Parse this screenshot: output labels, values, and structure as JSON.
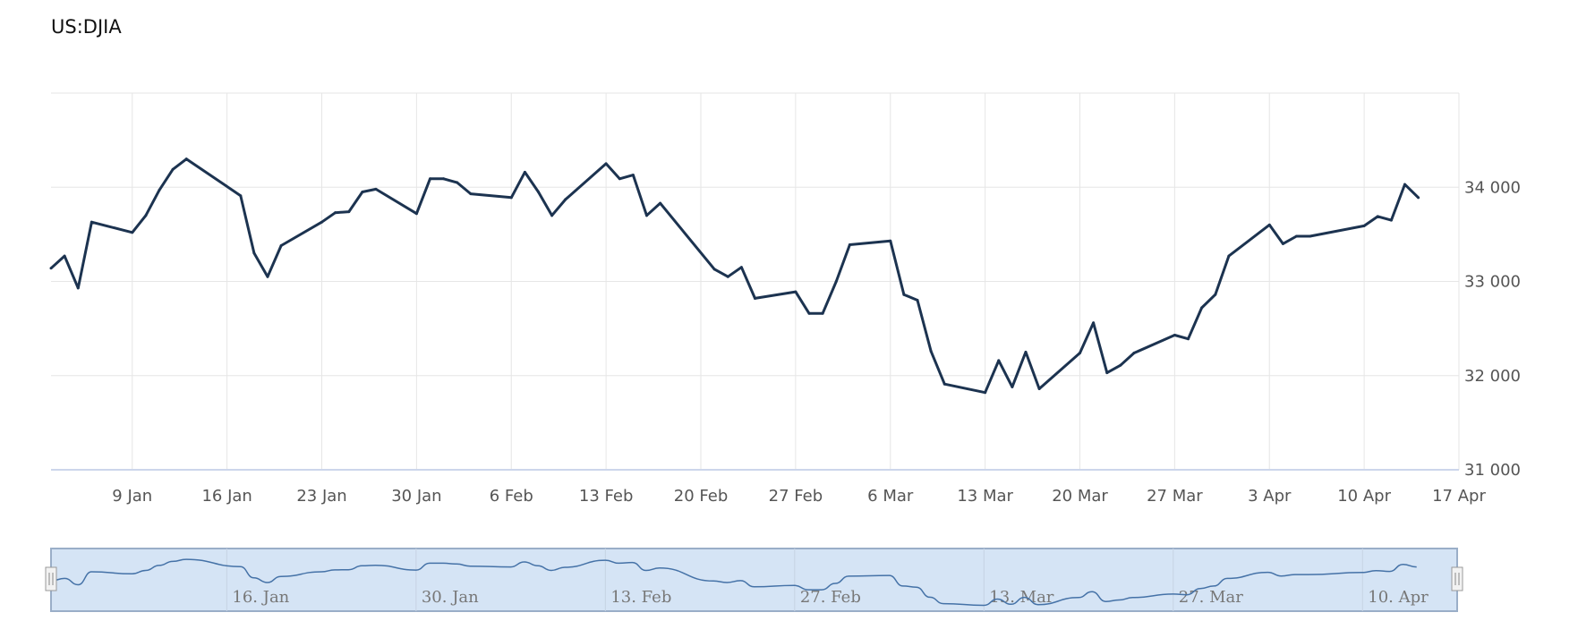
{
  "title": "US:DJIA",
  "colors": {
    "line": "#1c3350",
    "grid": "#e6e6e6",
    "axis": "#ccd6eb",
    "navigator_fill": "#d5e4f5",
    "navigator_line": "#4572a7"
  },
  "chart_data": {
    "type": "line",
    "title": "US:DJIA",
    "xlabel": "",
    "ylabel": "",
    "ylim": [
      31000,
      35000
    ],
    "y_ticks": [
      31000,
      32000,
      33000,
      34000
    ],
    "y_tick_labels": [
      "31 000",
      "32 000",
      "33 000",
      "34 000"
    ],
    "x_ticks": [
      "2023-01-09",
      "2023-01-16",
      "2023-01-23",
      "2023-01-30",
      "2023-02-06",
      "2023-02-13",
      "2023-02-20",
      "2023-02-27",
      "2023-03-06",
      "2023-03-13",
      "2023-03-20",
      "2023-03-27",
      "2023-04-03",
      "2023-04-10",
      "2023-04-17"
    ],
    "x_tick_labels": [
      "9 Jan",
      "16 Jan",
      "23 Jan",
      "30 Jan",
      "6 Feb",
      "13 Feb",
      "20 Feb",
      "27 Feb",
      "6 Mar",
      "13 Mar",
      "20 Mar",
      "27 Mar",
      "3 Apr",
      "10 Apr",
      "17 Apr"
    ],
    "xlim": [
      "2023-01-03",
      "2023-04-17"
    ],
    "grid": true,
    "legend": "none",
    "series": [
      {
        "x": [
          "2023-01-03",
          "2023-01-04",
          "2023-01-05",
          "2023-01-06",
          "2023-01-09",
          "2023-01-10",
          "2023-01-11",
          "2023-01-12",
          "2023-01-13",
          "2023-01-17",
          "2023-01-18",
          "2023-01-19",
          "2023-01-20",
          "2023-01-23",
          "2023-01-24",
          "2023-01-25",
          "2023-01-26",
          "2023-01-27",
          "2023-01-30",
          "2023-01-31",
          "2023-02-01",
          "2023-02-02",
          "2023-02-03",
          "2023-02-06",
          "2023-02-07",
          "2023-02-08",
          "2023-02-09",
          "2023-02-10",
          "2023-02-13",
          "2023-02-14",
          "2023-02-15",
          "2023-02-16",
          "2023-02-17",
          "2023-02-21",
          "2023-02-22",
          "2023-02-23",
          "2023-02-24",
          "2023-02-27",
          "2023-02-28",
          "2023-03-01",
          "2023-03-02",
          "2023-03-03",
          "2023-03-06",
          "2023-03-07",
          "2023-03-08",
          "2023-03-09",
          "2023-03-10",
          "2023-03-13",
          "2023-03-14",
          "2023-03-15",
          "2023-03-16",
          "2023-03-17",
          "2023-03-20",
          "2023-03-21",
          "2023-03-22",
          "2023-03-23",
          "2023-03-24",
          "2023-03-27",
          "2023-03-28",
          "2023-03-29",
          "2023-03-30",
          "2023-03-31",
          "2023-04-03",
          "2023-04-04",
          "2023-04-05",
          "2023-04-06",
          "2023-04-10",
          "2023-04-11",
          "2023-04-12",
          "2023-04-13",
          "2023-04-14"
        ],
        "values": [
          33140,
          33270,
          32930,
          33630,
          33520,
          33700,
          33970,
          34190,
          34300,
          33910,
          33300,
          33050,
          33380,
          33630,
          33730,
          33740,
          33950,
          33980,
          33720,
          34090,
          34090,
          34050,
          33930,
          33890,
          34160,
          33950,
          33700,
          33870,
          34250,
          34090,
          34130,
          33700,
          33830,
          33130,
          33050,
          33150,
          32820,
          32890,
          32660,
          32660,
          33000,
          33390,
          33430,
          32860,
          32800,
          32260,
          31910,
          31820,
          32160,
          31880,
          32250,
          31860,
          32240,
          32560,
          32030,
          32110,
          32240,
          32430,
          32390,
          32720,
          32860,
          33270,
          33600,
          33400,
          33480,
          33480,
          33590,
          33690,
          33650,
          34030,
          33890
        ]
      }
    ]
  },
  "navigator": {
    "labels": [
      "16. Jan",
      "30. Jan",
      "13. Feb",
      "27. Feb",
      "13. Mar",
      "27. Mar",
      "10. Apr"
    ]
  }
}
